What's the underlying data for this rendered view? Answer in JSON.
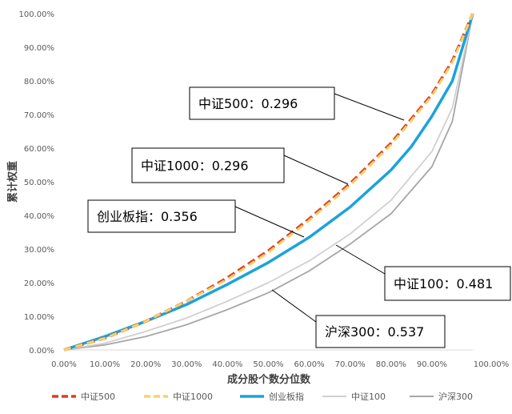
{
  "chart_data": {
    "type": "line",
    "xlabel": "成分股个数分位数",
    "ylabel": "累计权重",
    "xlim": [
      0,
      1
    ],
    "ylim": [
      0,
      1
    ],
    "x_ticks": [
      "0.00%",
      "10.00%",
      "20.00%",
      "30.00%",
      "40.00%",
      "50.00%",
      "60.00%",
      "70.00%",
      "80.00%",
      "90.00%",
      "100.00%"
    ],
    "y_ticks": [
      "0.00%",
      "10.00%",
      "20.00%",
      "30.00%",
      "40.00%",
      "50.00%",
      "60.00%",
      "70.00%",
      "80.00%",
      "90.00%",
      "100.00%"
    ],
    "grid": false,
    "legend_position": "bottom",
    "series": [
      {
        "name": "中证500",
        "color": "#e03c1f",
        "style": "dashed",
        "x": [
          0,
          0.1,
          0.2,
          0.3,
          0.4,
          0.5,
          0.6,
          0.7,
          0.8,
          0.9,
          0.95,
          1.0
        ],
        "y": [
          0,
          0.035,
          0.085,
          0.145,
          0.215,
          0.295,
          0.39,
          0.495,
          0.615,
          0.76,
          0.86,
          1.0
        ],
        "gini_label": "中证500：0.296"
      },
      {
        "name": "中证1000",
        "color": "#f5d36b",
        "style": "dashed",
        "x": [
          0,
          0.1,
          0.2,
          0.3,
          0.4,
          0.5,
          0.6,
          0.7,
          0.8,
          0.9,
          0.95,
          1.0
        ],
        "y": [
          0,
          0.035,
          0.085,
          0.145,
          0.21,
          0.29,
          0.385,
          0.49,
          0.61,
          0.755,
          0.855,
          1.0
        ],
        "gini_label": "中证1000：0.296"
      },
      {
        "name": "创业板指",
        "color": "#1aa3dc",
        "style": "solid",
        "x": [
          0,
          0.1,
          0.2,
          0.3,
          0.4,
          0.5,
          0.6,
          0.7,
          0.8,
          0.85,
          0.9,
          0.95,
          1.0
        ],
        "y": [
          0,
          0.04,
          0.085,
          0.135,
          0.195,
          0.26,
          0.335,
          0.425,
          0.535,
          0.605,
          0.695,
          0.8,
          1.0
        ],
        "gini_label": "创业板指：0.356"
      },
      {
        "name": "中证100",
        "color": "#d0d0d0",
        "style": "solid",
        "x": [
          0,
          0.1,
          0.2,
          0.3,
          0.4,
          0.5,
          0.6,
          0.7,
          0.8,
          0.9,
          0.95,
          1.0
        ],
        "y": [
          0,
          0.02,
          0.055,
          0.095,
          0.145,
          0.2,
          0.265,
          0.345,
          0.445,
          0.59,
          0.72,
          1.0
        ],
        "gini_label": "中证100：0.481"
      },
      {
        "name": "沪深300",
        "color": "#a6a6a6",
        "style": "solid",
        "x": [
          0,
          0.1,
          0.2,
          0.3,
          0.4,
          0.5,
          0.6,
          0.7,
          0.8,
          0.9,
          0.95,
          1.0
        ],
        "y": [
          0,
          0.015,
          0.04,
          0.075,
          0.12,
          0.17,
          0.235,
          0.315,
          0.405,
          0.545,
          0.68,
          1.0
        ],
        "gini_label": "沪深300：0.537"
      }
    ]
  }
}
